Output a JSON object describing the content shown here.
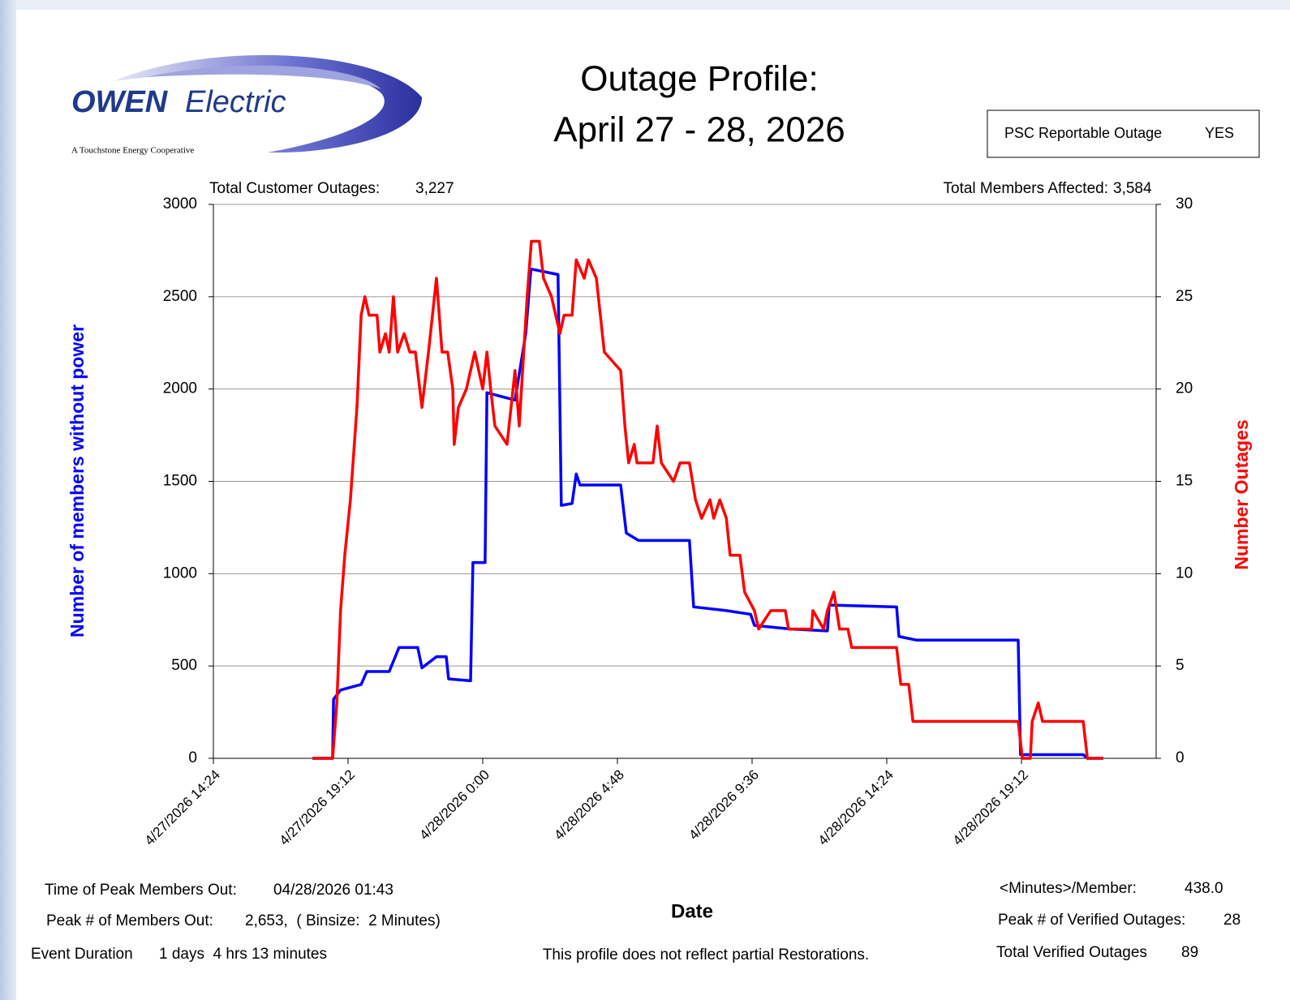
{
  "logo": {
    "brand": "OWEN",
    "word": "Electric",
    "tagline": "A Touchstone Energy Cooperative"
  },
  "psc": {
    "label": "PSC Reportable Outage",
    "value": "YES"
  },
  "chart_data": {
    "type": "line",
    "title": "Outage Profile:",
    "subtitle": "April 27 - 28, 2026",
    "xlabel": "Date",
    "ylabel": "Number of members without power",
    "y2label": "Number Outages",
    "annotations": [
      {
        "label": "Total Customer Outages:",
        "value": "3,227"
      },
      {
        "label": "Total Members Affected:",
        "value": "3,584"
      }
    ],
    "xlim": [
      "2026-04-27T14:24",
      "2026-04-29T00:00"
    ],
    "xticks": [
      {
        "value": "2026-04-27T14:24",
        "label": "4/27/2026 14:24"
      },
      {
        "value": "2026-04-27T19:12",
        "label": "4/27/2026 19:12"
      },
      {
        "value": "2026-04-28T00:00",
        "label": "4/28/2026 0:00"
      },
      {
        "value": "2026-04-28T04:48",
        "label": "4/28/2026 4:48"
      },
      {
        "value": "2026-04-28T09:36",
        "label": "4/28/2026 9:36"
      },
      {
        "value": "2026-04-28T14:24",
        "label": "4/28/2026 14:24"
      },
      {
        "value": "2026-04-28T19:12",
        "label": "4/28/2026 19:12"
      }
    ],
    "ylim": [
      0,
      3000
    ],
    "yticks": [
      0,
      500,
      1000,
      1500,
      2000,
      2500,
      3000
    ],
    "y2lim": [
      0,
      30
    ],
    "y2ticks": [
      0,
      5,
      10,
      15,
      20,
      25,
      30
    ],
    "grid": true,
    "series": [
      {
        "color": "#0000ff",
        "axis": "y",
        "x": [
          "2026-04-27T17:56",
          "2026-04-27T18:39",
          "2026-04-27T18:41",
          "2026-04-27T18:56",
          "2026-04-27T19:40",
          "2026-04-27T19:52",
          "2026-04-27T20:40",
          "2026-04-27T21:01",
          "2026-04-27T21:41",
          "2026-04-27T21:50",
          "2026-04-27T22:21",
          "2026-04-27T22:42",
          "2026-04-27T22:47",
          "2026-04-27T23:34",
          "2026-04-27T23:39",
          "2026-04-28T00:05",
          "2026-04-28T00:09",
          "2026-04-28T01:09",
          "2026-04-28T01:32",
          "2026-04-28T01:43",
          "2026-04-28T02:41",
          "2026-04-28T02:48",
          "2026-04-28T03:11",
          "2026-04-28T03:20",
          "2026-04-28T03:28",
          "2026-04-28T04:55",
          "2026-04-28T05:07",
          "2026-04-28T05:33",
          "2026-04-28T07:22",
          "2026-04-28T07:31",
          "2026-04-28T08:41",
          "2026-04-28T09:33",
          "2026-04-28T09:41",
          "2026-04-28T10:59",
          "2026-04-28T12:17",
          "2026-04-28T12:21",
          "2026-04-28T14:45",
          "2026-04-28T14:50",
          "2026-04-28T15:28",
          "2026-04-28T19:05",
          "2026-04-28T19:10",
          "2026-04-28T21:24",
          "2026-04-28T21:33",
          "2026-04-28T22:07"
        ],
        "values": [
          0,
          0,
          320,
          370,
          400,
          470,
          470,
          600,
          600,
          490,
          550,
          550,
          430,
          420,
          1060,
          1060,
          1980,
          1940,
          2300,
          2650,
          2620,
          1370,
          1380,
          1540,
          1480,
          1480,
          1220,
          1180,
          1180,
          820,
          800,
          780,
          720,
          700,
          690,
          830,
          820,
          660,
          640,
          640,
          20,
          20,
          0,
          0
        ]
      },
      {
        "color": "#ff0000",
        "axis": "y2",
        "x": [
          "2026-04-27T17:56",
          "2026-04-27T18:39",
          "2026-04-27T18:48",
          "2026-04-27T18:56",
          "2026-04-27T19:05",
          "2026-04-27T19:17",
          "2026-04-27T19:31",
          "2026-04-27T19:40",
          "2026-04-27T19:48",
          "2026-04-27T19:57",
          "2026-04-27T20:14",
          "2026-04-27T20:20",
          "2026-04-27T20:32",
          "2026-04-27T20:40",
          "2026-04-27T20:49",
          "2026-04-27T20:58",
          "2026-04-27T21:12",
          "2026-04-27T21:24",
          "2026-04-27T21:36",
          "2026-04-27T21:50",
          "2026-04-27T22:04",
          "2026-04-27T22:21",
          "2026-04-27T22:33",
          "2026-04-27T22:45",
          "2026-04-27T22:56",
          "2026-04-27T22:59",
          "2026-04-27T23:08",
          "2026-04-27T23:25",
          "2026-04-27T23:43",
          "2026-04-28T00:00",
          "2026-04-28T00:09",
          "2026-04-28T00:17",
          "2026-04-28T00:26",
          "2026-04-28T00:52",
          "2026-04-28T01:09",
          "2026-04-28T01:18",
          "2026-04-28T01:35",
          "2026-04-28T01:44",
          "2026-04-28T02:01",
          "2026-04-28T02:10",
          "2026-04-28T02:27",
          "2026-04-28T02:45",
          "2026-04-28T02:54",
          "2026-04-28T03:11",
          "2026-04-28T03:20",
          "2026-04-28T03:37",
          "2026-04-28T03:46",
          "2026-04-28T04:03",
          "2026-04-28T04:20",
          "2026-04-28T04:55",
          "2026-04-28T05:04",
          "2026-04-28T05:12",
          "2026-04-28T05:24",
          "2026-04-28T05:30",
          "2026-04-28T06:04",
          "2026-04-28T06:13",
          "2026-04-28T06:22",
          "2026-04-28T06:48",
          "2026-04-28T07:02",
          "2026-04-28T07:22",
          "2026-04-28T07:35",
          "2026-04-28T07:48",
          "2026-04-28T08:06",
          "2026-04-28T08:14",
          "2026-04-28T08:27",
          "2026-04-28T08:41",
          "2026-04-28T08:49",
          "2026-04-28T09:10",
          "2026-04-28T09:20",
          "2026-04-28T09:41",
          "2026-04-28T09:50",
          "2026-04-28T10:16",
          "2026-04-28T10:47",
          "2026-04-28T10:54",
          "2026-04-28T11:43",
          "2026-04-28T11:46",
          "2026-04-28T12:09",
          "2026-04-28T12:17",
          "2026-04-28T12:31",
          "2026-04-28T12:43",
          "2026-04-28T13:01",
          "2026-04-28T13:09",
          "2026-04-28T14:45",
          "2026-04-28T14:54",
          "2026-04-28T15:11",
          "2026-04-28T15:20",
          "2026-04-28T19:05",
          "2026-04-28T19:14",
          "2026-04-28T19:31",
          "2026-04-28T19:35",
          "2026-04-28T19:48",
          "2026-04-28T19:57",
          "2026-04-28T21:24",
          "2026-04-28T21:33",
          "2026-04-28T22:07"
        ],
        "values": [
          0,
          0,
          3,
          8,
          11,
          14,
          19,
          24,
          25,
          24,
          24,
          22,
          23,
          22,
          25,
          22,
          23,
          22,
          22,
          19,
          22,
          26,
          22,
          22,
          20,
          17,
          19,
          20,
          22,
          20,
          22,
          20,
          18,
          17,
          21,
          18,
          25,
          28,
          28,
          26,
          25,
          23,
          24,
          24,
          27,
          26,
          27,
          26,
          22,
          21,
          18,
          16,
          17,
          16,
          16,
          18,
          16,
          15,
          16,
          16,
          14,
          13,
          14,
          13,
          14,
          13,
          11,
          11,
          9,
          8,
          7,
          8,
          8,
          7,
          7,
          8,
          7,
          8,
          9,
          7,
          7,
          6,
          6,
          4,
          4,
          2,
          2,
          0,
          0,
          2,
          3,
          2,
          2,
          0,
          0
        ]
      }
    ]
  },
  "footer": {
    "left": [
      {
        "label": "Time of Peak Members Out:",
        "value": "04/28/2026 01:43"
      },
      {
        "label": "Peak # of Members Out:",
        "value": "2,653,  ( Binsize:  2 Minutes)"
      },
      {
        "label": "Event Duration",
        "value": "1 days  4 hrs 13 minutes"
      }
    ],
    "note": "This profile does not reflect partial Restorations.",
    "right": [
      {
        "label": "<Minutes>/Member:",
        "value": "438.0"
      },
      {
        "label": "Peak # of Verified Outages:",
        "value": "28"
      },
      {
        "label": "Total Verified Outages",
        "value": "89"
      }
    ]
  }
}
